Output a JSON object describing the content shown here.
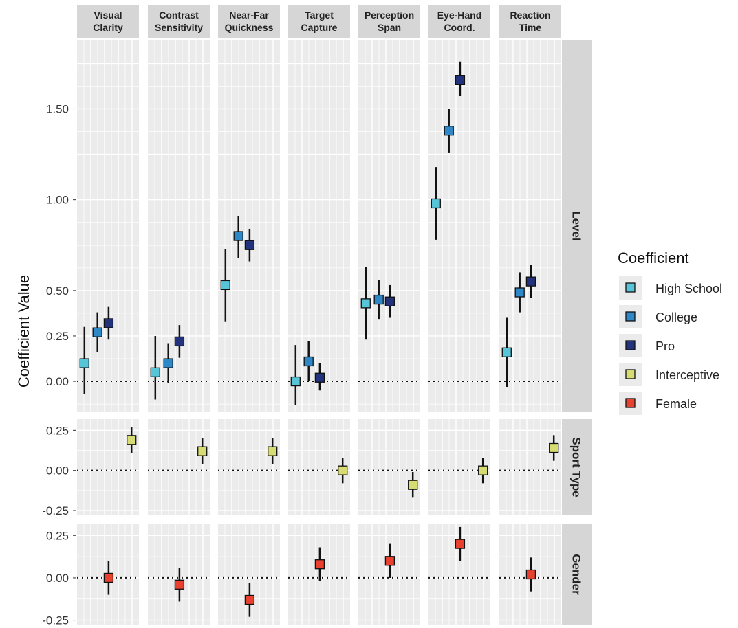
{
  "chart_data": {
    "type": "scatter",
    "title": "",
    "xlabel": "",
    "ylabel": "Coefficient Value",
    "grid": true,
    "legend_position": "right",
    "legend_title": "Coefficient",
    "facet_columns": [
      {
        "key": "visual_clarity",
        "label": [
          "Visual",
          "Clarity"
        ]
      },
      {
        "key": "contrast_sensitivity",
        "label": [
          "Contrast",
          "Sensitivity"
        ]
      },
      {
        "key": "near_far_quickness",
        "label": [
          "Near-Far",
          "Quickness"
        ]
      },
      {
        "key": "target_capture",
        "label": [
          "Target",
          "Capture"
        ]
      },
      {
        "key": "perception_span",
        "label": [
          "Perception",
          "Span"
        ]
      },
      {
        "key": "eye_hand_coord",
        "label": [
          "Eye-Hand",
          "Coord."
        ]
      },
      {
        "key": "reaction_time",
        "label": [
          "Reaction",
          "Time"
        ]
      }
    ],
    "facet_rows": [
      {
        "key": "level",
        "label": "Level",
        "ylim": [
          -0.17,
          1.88
        ],
        "ticks": [
          "0.00",
          "0.25",
          "0.50",
          "1.00",
          "1.50"
        ]
      },
      {
        "key": "sport_type",
        "label": "Sport Type",
        "ylim": [
          -0.28,
          0.32
        ],
        "ticks": [
          "-0.25",
          "0.00",
          "0.25"
        ]
      },
      {
        "key": "gender",
        "label": "Gender",
        "ylim": [
          -0.28,
          0.32
        ],
        "ticks": [
          "-0.25",
          "0.00",
          "0.25"
        ]
      }
    ],
    "series": [
      {
        "name": "High School",
        "color": "#57C4D8",
        "row": "level",
        "x_slot": 0,
        "values": [
          0.1,
          0.05,
          0.53,
          0.0,
          0.43,
          0.98,
          0.16
        ],
        "ci_low": [
          -0.07,
          -0.1,
          0.33,
          -0.13,
          0.23,
          0.78,
          -0.03
        ],
        "ci_high": [
          0.3,
          0.25,
          0.73,
          0.2,
          0.63,
          1.18,
          0.35
        ]
      },
      {
        "name": "College",
        "color": "#2E87C7",
        "row": "level",
        "x_slot": 1,
        "values": [
          0.27,
          0.1,
          0.8,
          0.11,
          0.45,
          1.38,
          0.49
        ],
        "ci_low": [
          0.16,
          -0.01,
          0.68,
          0.0,
          0.34,
          1.26,
          0.38
        ],
        "ci_high": [
          0.38,
          0.21,
          0.91,
          0.22,
          0.56,
          1.5,
          0.6
        ]
      },
      {
        "name": "Pro",
        "color": "#23327D",
        "row": "level",
        "x_slot": 2,
        "values": [
          0.32,
          0.22,
          0.75,
          0.02,
          0.44,
          1.66,
          0.55
        ],
        "ci_low": [
          0.23,
          0.13,
          0.66,
          -0.05,
          0.35,
          1.57,
          0.46
        ],
        "ci_high": [
          0.41,
          0.31,
          0.84,
          0.1,
          0.53,
          1.76,
          0.64
        ]
      },
      {
        "name": "Interceptive",
        "color": "#D6DC72",
        "row": "sport_type",
        "x_slot": 3,
        "values": [
          0.19,
          0.12,
          0.12,
          0.0,
          -0.09,
          0.0,
          0.14
        ],
        "ci_low": [
          0.11,
          0.04,
          0.04,
          -0.08,
          -0.17,
          -0.08,
          0.06
        ],
        "ci_high": [
          0.27,
          0.2,
          0.2,
          0.08,
          -0.01,
          0.08,
          0.22
        ]
      },
      {
        "name": "Female",
        "color": "#E8412F",
        "row": "gender",
        "x_slot": 2,
        "values": [
          0.0,
          -0.04,
          -0.13,
          0.08,
          0.1,
          0.2,
          0.02
        ],
        "ci_low": [
          -0.1,
          -0.14,
          -0.23,
          -0.02,
          0.0,
          0.1,
          -0.08
        ],
        "ci_high": [
          0.1,
          0.06,
          -0.03,
          0.18,
          0.2,
          0.3,
          0.12
        ]
      }
    ]
  }
}
